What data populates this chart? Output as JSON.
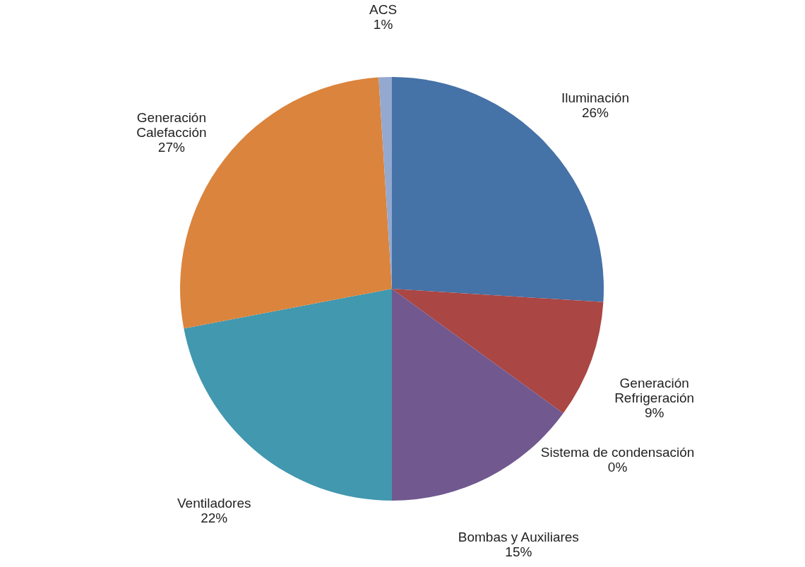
{
  "chart_data": {
    "type": "pie",
    "categories": [
      "Iluminación",
      "Generación\nRefrigeración",
      "Sistema de condensación",
      "Bombas y Auxiliares",
      "Ventiladores",
      "Generación\nCalefacción",
      "ACS"
    ],
    "values": [
      26,
      9,
      0,
      15,
      22,
      27,
      1
    ],
    "value_labels": [
      "26%",
      "9%",
      "0%",
      "15%",
      "22%",
      "27%",
      "1%"
    ],
    "colors": [
      "#4572a7",
      "#aa4643",
      "#89a54e",
      "#71588f",
      "#4198af",
      "#db843d",
      "#93a9cf"
    ],
    "legend": false
  }
}
